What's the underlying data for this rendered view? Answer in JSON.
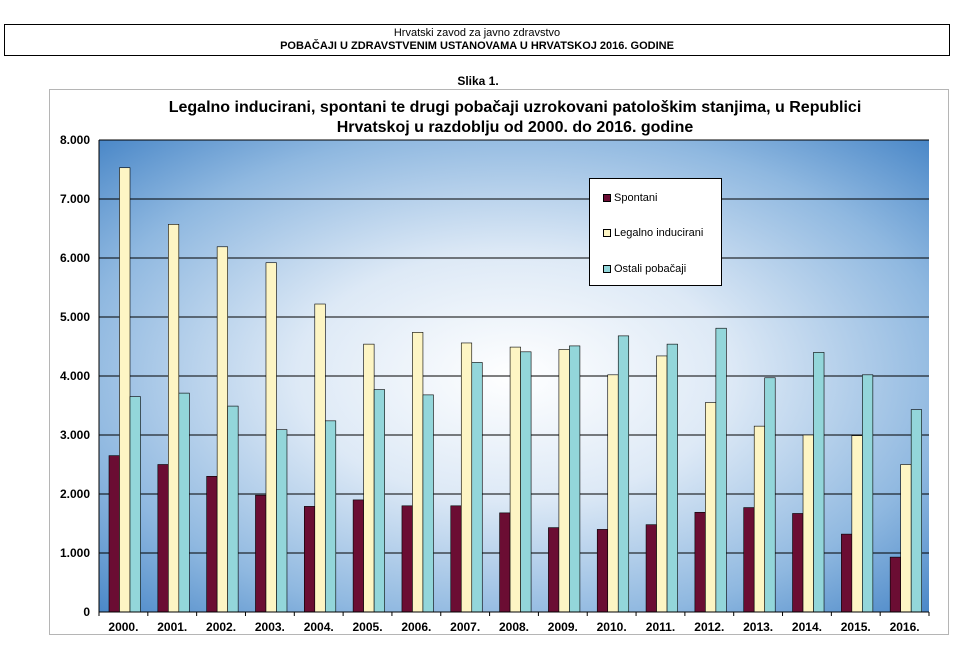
{
  "header": {
    "institution": "Hrvatski zavod za javno zdravstvo",
    "document_title": "POBAČAJI U ZDRAVSTVENIM USTANOVAMA U HRVATSKOJ 2016. GODINE"
  },
  "figure_label": "Slika 1.",
  "chart_data": {
    "type": "bar",
    "title_line1": "Legalno inducirani, spontani te drugi pobačaji uzrokovani patološkim stanjima, u Republici",
    "title_line2": "Hrvatskoj u razdoblju od 2000. do 2016. godine",
    "categories": [
      "2000.",
      "2001.",
      "2002.",
      "2003.",
      "2004.",
      "2005.",
      "2006.",
      "2007.",
      "2008.",
      "2009.",
      "2010.",
      "2011.",
      "2012.",
      "2013.",
      "2014.",
      "2015.",
      "2016."
    ],
    "series": [
      {
        "name": "Spontani",
        "color": "#6b0d33",
        "values": [
          2650,
          2500,
          2300,
          1980,
          1790,
          1900,
          1800,
          1800,
          1680,
          1430,
          1400,
          1480,
          1690,
          1770,
          1670,
          1320,
          930
        ]
      },
      {
        "name": "Legalno inducirani",
        "color": "#fdf5c4",
        "values": [
          7530,
          6570,
          6190,
          5920,
          5220,
          4540,
          4740,
          4560,
          4490,
          4450,
          4020,
          4340,
          3550,
          3150,
          3000,
          2990,
          2500
        ]
      },
      {
        "name": "Ostali pobačaji",
        "color": "#93d6da",
        "values": [
          3650,
          3710,
          3490,
          3090,
          3240,
          3770,
          3680,
          4230,
          4410,
          4510,
          4680,
          4540,
          4810,
          3970,
          4400,
          4020,
          3430
        ]
      }
    ],
    "y_ticks": [
      "0",
      "1.000",
      "2.000",
      "3.000",
      "4.000",
      "5.000",
      "6.000",
      "7.000",
      "8.000"
    ],
    "ylim": [
      0,
      8000
    ],
    "grid": true,
    "legend_position": "top-right"
  }
}
